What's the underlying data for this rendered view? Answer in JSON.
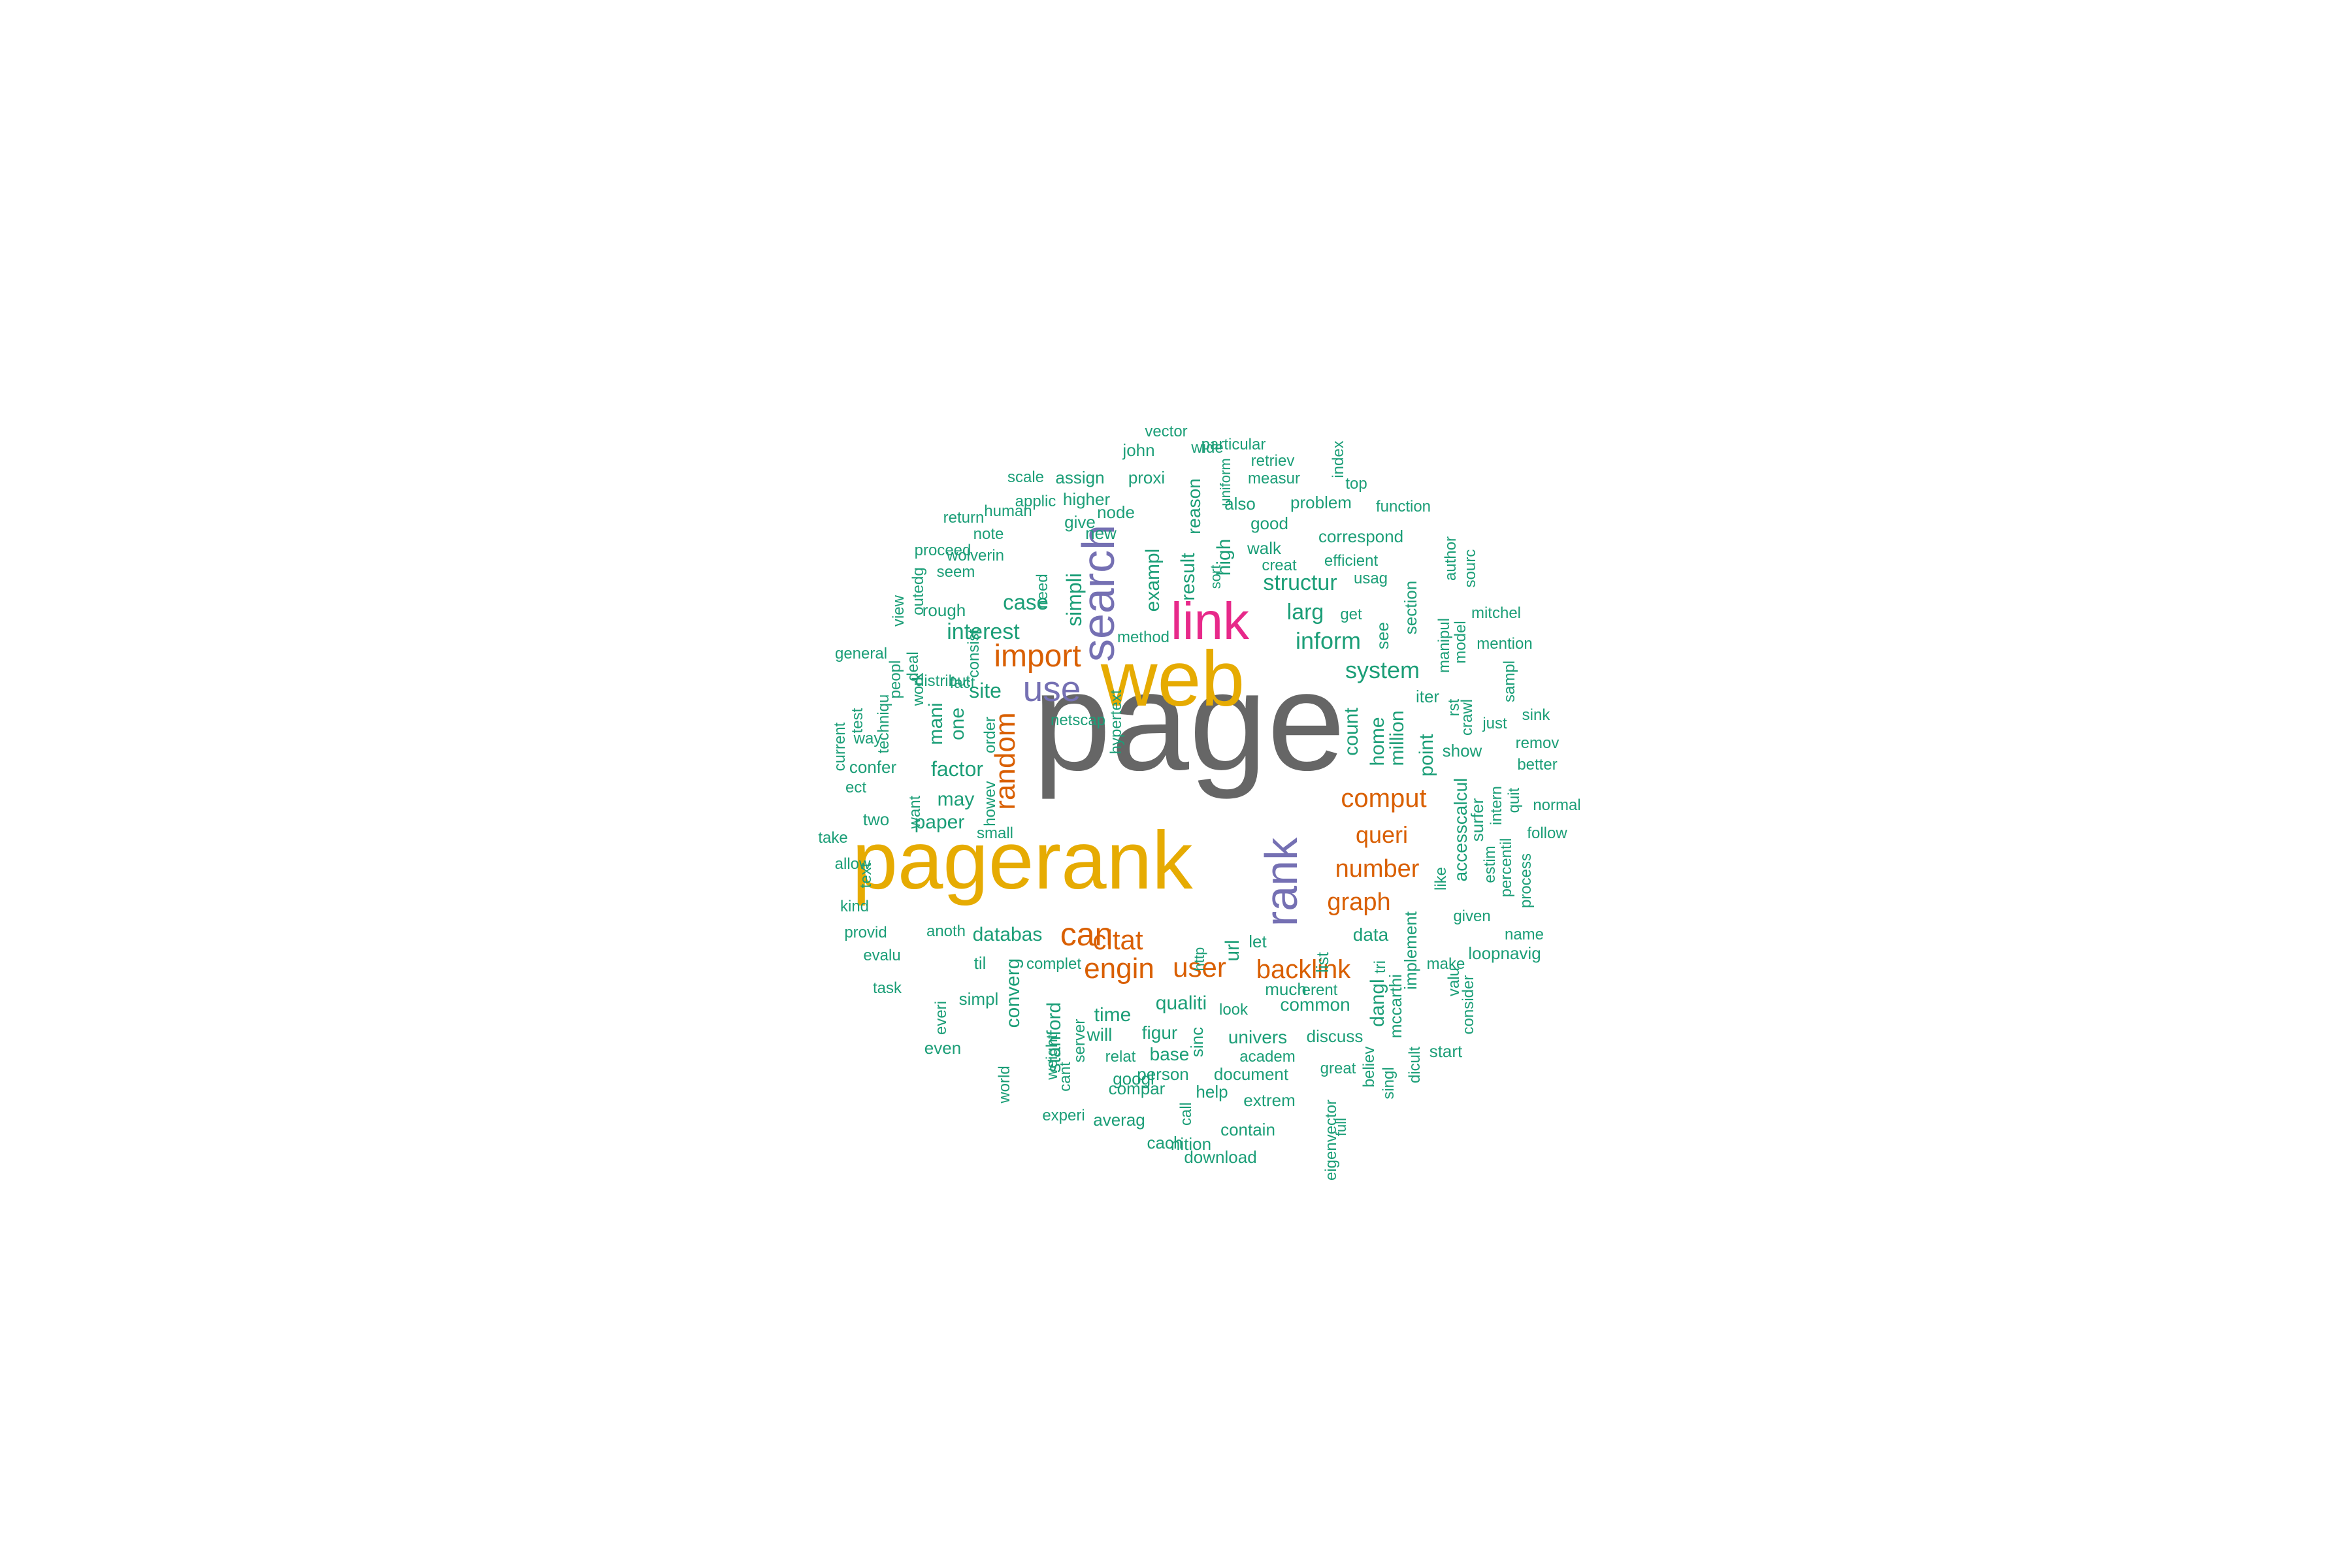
{
  "palette": {
    "teal": "#1B9E77",
    "orange": "#D95F02",
    "purple": "#7570B3",
    "magenta": "#E7298A",
    "gold": "#E6AB02",
    "gray": "#666666"
  },
  "words": [
    {
      "text": "page",
      "color": "gray"
    },
    {
      "text": "web",
      "color": "gold"
    },
    {
      "text": "pagerank",
      "color": "gold"
    },
    {
      "text": "link",
      "color": "magenta"
    },
    {
      "text": "search",
      "color": "purple"
    },
    {
      "text": "rank",
      "color": "purple"
    },
    {
      "text": "use",
      "color": "purple"
    },
    {
      "text": "import",
      "color": "orange"
    },
    {
      "text": "random",
      "color": "orange"
    },
    {
      "text": "can",
      "color": "orange"
    },
    {
      "text": "engin",
      "color": "orange"
    },
    {
      "text": "citat",
      "color": "orange"
    },
    {
      "text": "user",
      "color": "orange"
    },
    {
      "text": "backlink",
      "color": "orange"
    },
    {
      "text": "comput",
      "color": "orange"
    },
    {
      "text": "queri",
      "color": "orange"
    },
    {
      "text": "number",
      "color": "orange"
    },
    {
      "text": "graph",
      "color": "orange"
    },
    {
      "text": "inform",
      "color": "teal"
    },
    {
      "text": "system",
      "color": "teal"
    },
    {
      "text": "structur",
      "color": "teal"
    },
    {
      "text": "larg",
      "color": "teal"
    },
    {
      "text": "interest",
      "color": "teal"
    },
    {
      "text": "case",
      "color": "teal"
    },
    {
      "text": "site",
      "color": "teal"
    },
    {
      "text": "factor",
      "color": "teal"
    },
    {
      "text": "may",
      "color": "teal"
    },
    {
      "text": "paper",
      "color": "teal"
    },
    {
      "text": "databas",
      "color": "teal"
    },
    {
      "text": "data",
      "color": "teal"
    },
    {
      "text": "url",
      "color": "teal"
    },
    {
      "text": "qualiti",
      "color": "teal"
    },
    {
      "text": "time",
      "color": "teal"
    },
    {
      "text": "figur",
      "color": "teal"
    },
    {
      "text": "will",
      "color": "teal"
    },
    {
      "text": "univers",
      "color": "teal"
    },
    {
      "text": "common",
      "color": "teal"
    },
    {
      "text": "base",
      "color": "teal"
    },
    {
      "text": "stanford",
      "color": "teal"
    },
    {
      "text": "converg",
      "color": "teal"
    },
    {
      "text": "simpli",
      "color": "teal"
    },
    {
      "text": "exampl",
      "color": "teal"
    },
    {
      "text": "result",
      "color": "teal"
    },
    {
      "text": "high",
      "color": "teal"
    },
    {
      "text": "count",
      "color": "teal"
    },
    {
      "text": "home",
      "color": "teal"
    },
    {
      "text": "million",
      "color": "teal"
    },
    {
      "text": "point",
      "color": "teal"
    },
    {
      "text": "mani",
      "color": "teal"
    },
    {
      "text": "one",
      "color": "teal"
    },
    {
      "text": "problem",
      "color": "teal"
    },
    {
      "text": "also",
      "color": "teal"
    },
    {
      "text": "good",
      "color": "teal"
    },
    {
      "text": "correspond",
      "color": "teal"
    },
    {
      "text": "walk",
      "color": "teal"
    },
    {
      "text": "creat",
      "color": "teal"
    },
    {
      "text": "usag",
      "color": "teal"
    },
    {
      "text": "efficient",
      "color": "teal"
    },
    {
      "text": "get",
      "color": "teal"
    },
    {
      "text": "see",
      "color": "teal"
    },
    {
      "text": "section",
      "color": "teal"
    },
    {
      "text": "iter",
      "color": "teal"
    },
    {
      "text": "manipul",
      "color": "teal"
    },
    {
      "text": "model",
      "color": "teal"
    },
    {
      "text": "author",
      "color": "teal"
    },
    {
      "text": "sourc",
      "color": "teal"
    },
    {
      "text": "mitchel",
      "color": "teal"
    },
    {
      "text": "mention",
      "color": "teal"
    },
    {
      "text": "crawl",
      "color": "teal"
    },
    {
      "text": "rst",
      "color": "teal"
    },
    {
      "text": "sampl",
      "color": "teal"
    },
    {
      "text": "just",
      "color": "teal"
    },
    {
      "text": "sink",
      "color": "teal"
    },
    {
      "text": "show",
      "color": "teal"
    },
    {
      "text": "remov",
      "color": "teal"
    },
    {
      "text": "better",
      "color": "teal"
    },
    {
      "text": "accesscalcul",
      "color": "teal"
    },
    {
      "text": "surfer",
      "color": "teal"
    },
    {
      "text": "intern",
      "color": "teal"
    },
    {
      "text": "quit",
      "color": "teal"
    },
    {
      "text": "like",
      "color": "teal"
    },
    {
      "text": "estim",
      "color": "teal"
    },
    {
      "text": "percentil",
      "color": "teal"
    },
    {
      "text": "process",
      "color": "teal"
    },
    {
      "text": "normal",
      "color": "teal"
    },
    {
      "text": "follow",
      "color": "teal"
    },
    {
      "text": "given",
      "color": "teal"
    },
    {
      "text": "name",
      "color": "teal"
    },
    {
      "text": "loopnavig",
      "color": "teal"
    },
    {
      "text": "make",
      "color": "teal"
    },
    {
      "text": "valu",
      "color": "teal"
    },
    {
      "text": "consider",
      "color": "teal"
    },
    {
      "text": "implement",
      "color": "teal"
    },
    {
      "text": "mccarthi",
      "color": "teal"
    },
    {
      "text": "tri",
      "color": "teal"
    },
    {
      "text": "singl",
      "color": "teal"
    },
    {
      "text": "start",
      "color": "teal"
    },
    {
      "text": "dangl",
      "color": "teal"
    },
    {
      "text": "dicult",
      "color": "teal"
    },
    {
      "text": "believ",
      "color": "teal"
    },
    {
      "text": "list",
      "color": "teal"
    },
    {
      "text": "let",
      "color": "teal"
    },
    {
      "text": "much",
      "color": "teal"
    },
    {
      "text": "erent",
      "color": "teal"
    },
    {
      "text": "discuss",
      "color": "teal"
    },
    {
      "text": "great",
      "color": "teal"
    },
    {
      "text": "full",
      "color": "teal"
    },
    {
      "text": "eigenvector",
      "color": "teal"
    },
    {
      "text": "look",
      "color": "teal"
    },
    {
      "text": "academ",
      "color": "teal"
    },
    {
      "text": "document",
      "color": "teal"
    },
    {
      "text": "extrem",
      "color": "teal"
    },
    {
      "text": "contain",
      "color": "teal"
    },
    {
      "text": "download",
      "color": "teal"
    },
    {
      "text": "help",
      "color": "teal"
    },
    {
      "text": "call",
      "color": "teal"
    },
    {
      "text": "nition",
      "color": "teal"
    },
    {
      "text": "sinc",
      "color": "teal"
    },
    {
      "text": "person",
      "color": "teal"
    },
    {
      "text": "relat",
      "color": "teal"
    },
    {
      "text": "googl",
      "color": "teal"
    },
    {
      "text": "compar",
      "color": "teal"
    },
    {
      "text": "cach",
      "color": "teal"
    },
    {
      "text": "averag",
      "color": "teal"
    },
    {
      "text": "experi",
      "color": "teal"
    },
    {
      "text": "server",
      "color": "teal"
    },
    {
      "text": "cant",
      "color": "teal"
    },
    {
      "text": "weight",
      "color": "teal"
    },
    {
      "text": "world",
      "color": "teal"
    },
    {
      "text": "complet",
      "color": "teal"
    },
    {
      "text": "http",
      "color": "teal"
    },
    {
      "text": "til",
      "color": "teal"
    },
    {
      "text": "simpl",
      "color": "teal"
    },
    {
      "text": "everi",
      "color": "teal"
    },
    {
      "text": "even",
      "color": "teal"
    },
    {
      "text": "anoth",
      "color": "teal"
    },
    {
      "text": "provid",
      "color": "teal"
    },
    {
      "text": "evalu",
      "color": "teal"
    },
    {
      "text": "task",
      "color": "teal"
    },
    {
      "text": "kind",
      "color": "teal"
    },
    {
      "text": "allow",
      "color": "teal"
    },
    {
      "text": "text",
      "color": "teal"
    },
    {
      "text": "take",
      "color": "teal"
    },
    {
      "text": "two",
      "color": "teal"
    },
    {
      "text": "small",
      "color": "teal"
    },
    {
      "text": "howev",
      "color": "teal"
    },
    {
      "text": "want",
      "color": "teal"
    },
    {
      "text": "ect",
      "color": "teal"
    },
    {
      "text": "confer",
      "color": "teal"
    },
    {
      "text": "way",
      "color": "teal"
    },
    {
      "text": "current",
      "color": "teal"
    },
    {
      "text": "test",
      "color": "teal"
    },
    {
      "text": "techniqu",
      "color": "teal"
    },
    {
      "text": "general",
      "color": "teal"
    },
    {
      "text": "peopl",
      "color": "teal"
    },
    {
      "text": "work",
      "color": "teal"
    },
    {
      "text": "distribut",
      "color": "teal"
    },
    {
      "text": "order",
      "color": "teal"
    },
    {
      "text": "fact",
      "color": "teal"
    },
    {
      "text": "deal",
      "color": "teal"
    },
    {
      "text": "view",
      "color": "teal"
    },
    {
      "text": "outedg",
      "color": "teal"
    },
    {
      "text": "rough",
      "color": "teal"
    },
    {
      "text": "proceed",
      "color": "teal"
    },
    {
      "text": "seem",
      "color": "teal"
    },
    {
      "text": "wolverin",
      "color": "teal"
    },
    {
      "text": "note",
      "color": "teal"
    },
    {
      "text": "consist",
      "color": "teal"
    },
    {
      "text": "return",
      "color": "teal"
    },
    {
      "text": "human",
      "color": "teal"
    },
    {
      "text": "applic",
      "color": "teal"
    },
    {
      "text": "need",
      "color": "teal"
    },
    {
      "text": "scale",
      "color": "teal"
    },
    {
      "text": "assign",
      "color": "teal"
    },
    {
      "text": "give",
      "color": "teal"
    },
    {
      "text": "new",
      "color": "teal"
    },
    {
      "text": "higher",
      "color": "teal"
    },
    {
      "text": "proxi",
      "color": "teal"
    },
    {
      "text": "node",
      "color": "teal"
    },
    {
      "text": "john",
      "color": "teal"
    },
    {
      "text": "vector",
      "color": "teal"
    },
    {
      "text": "wide",
      "color": "teal"
    },
    {
      "text": "particular",
      "color": "teal"
    },
    {
      "text": "uniform",
      "color": "teal"
    },
    {
      "text": "retriev",
      "color": "teal"
    },
    {
      "text": "measur",
      "color": "teal"
    },
    {
      "text": "index",
      "color": "teal"
    },
    {
      "text": "top",
      "color": "teal"
    },
    {
      "text": "function",
      "color": "teal"
    },
    {
      "text": "reason",
      "color": "teal"
    },
    {
      "text": "sort",
      "color": "teal"
    },
    {
      "text": "method",
      "color": "teal"
    },
    {
      "text": "hypertext",
      "color": "teal"
    },
    {
      "text": "netscap",
      "color": "teal"
    },
    {
      "text": "intuit",
      "color": "teal"
    },
    {
      "text": "well",
      "color": "teal"
    },
    {
      "text": "set",
      "color": "teal"
    },
    {
      "text": "acm",
      "color": "teal"
    }
  ]
}
